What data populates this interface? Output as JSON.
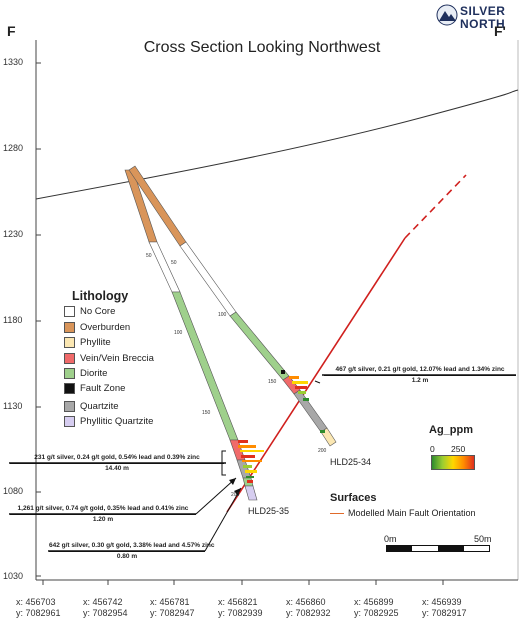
{
  "logo": {
    "word1": "SILVER",
    "word2": "NORTH"
  },
  "section": {
    "left": "F",
    "right": "F'"
  },
  "title": "Cross Section Looking Northwest",
  "elevation_ticks": [
    "1330",
    "1280",
    "1230",
    "1180",
    "1130",
    "1080",
    "1030"
  ],
  "coords": [
    {
      "x": "x: 456703",
      "y": "y: 7082961"
    },
    {
      "x": "x: 456742",
      "y": "y: 7082954"
    },
    {
      "x": "x: 456781",
      "y": "y: 7082947"
    },
    {
      "x": "x: 456821",
      "y": "y: 7082939"
    },
    {
      "x": "x: 456860",
      "y": "y: 7082932"
    },
    {
      "x": "x: 456899",
      "y": "y: 7082925"
    },
    {
      "x": "x: 456939",
      "y": "y: 7082917"
    }
  ],
  "lithology": {
    "title": "Lithology",
    "items": [
      {
        "label": "No Core",
        "color": "#ffffff"
      },
      {
        "label": "Overburden",
        "color": "#d9955a"
      },
      {
        "label": "Phyllite",
        "color": "#fbe7b2"
      },
      {
        "label": "Vein/Vein Breccia",
        "color": "#f06a6a"
      },
      {
        "label": "Diorite",
        "color": "#9fd08c"
      },
      {
        "label": "Fault Zone",
        "color": "#111111"
      },
      {
        "label": "Quartzite",
        "color": "#a8a8a8"
      },
      {
        "label": "Phyllitic Quartzite",
        "color": "#d6cdf0"
      }
    ]
  },
  "annotations": {
    "hld34": {
      "line1": "467 g/t silver, 0.21 g/t gold, 12.07% lead and 1.34% zinc",
      "line2": "1.2 m"
    },
    "a231": {
      "line1": "231 g/t silver, 0.24 g/t gold, 0.54% lead and 0.39% zinc",
      "line2": "14.40 m"
    },
    "a1261": {
      "line1": "1,261 g/t silver, 0.74 g/t gold, 0.35% lead and 0.41% zinc",
      "line2": "1.20 m"
    },
    "a642": {
      "line1": "642 g/t silver, 0.30 g/t gold, 3.38% lead and 4.57% zinc",
      "line2": "0.80 m"
    }
  },
  "depth_labels": {
    "hld35": [
      "50",
      "100",
      "150",
      "200"
    ],
    "hld34": [
      "50",
      "100",
      "150",
      "200"
    ]
  },
  "holes": {
    "hld35": "HLD25-35",
    "hld34": "HLD25-34"
  },
  "ag_legend": {
    "title": "Ag_ppm",
    "min": "0",
    "max": "250"
  },
  "surfaces": {
    "title": "Surfaces",
    "item": "Modelled Main Fault Orientation"
  },
  "scale": {
    "zero": "0m",
    "end": "50m"
  }
}
